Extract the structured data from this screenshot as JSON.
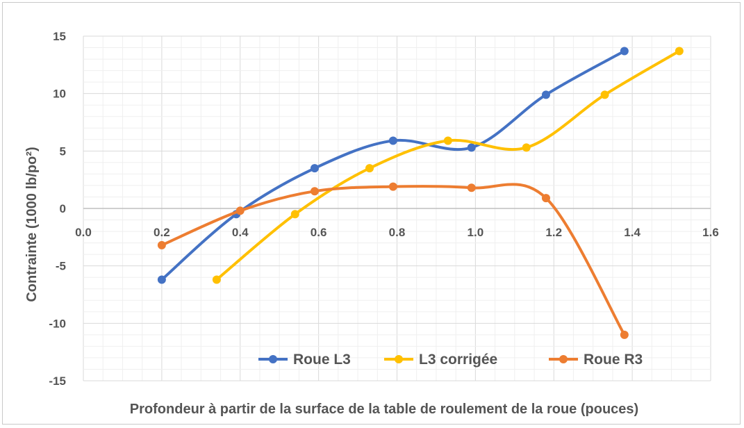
{
  "chart_data": {
    "type": "line",
    "title": "",
    "xlabel": "Profondeur à partir de la surface de la table de roulement de la roue (pouces)",
    "ylabel": "Contrainte (1000 lb/po²)",
    "xlim": [
      0.0,
      1.6
    ],
    "ylim": [
      -15,
      15
    ],
    "x_ticks": [
      "0.0",
      "0.2",
      "0.4",
      "0.6",
      "0.8",
      "1.0",
      "1.2",
      "1.4",
      "1.6"
    ],
    "y_ticks": [
      "15",
      "10",
      "5",
      "0",
      "-5",
      "-10",
      "-15"
    ],
    "grid": true,
    "legend_position": "bottom-right",
    "smooth": true,
    "series": [
      {
        "name": "Roue L3",
        "color": "#4472c4",
        "points": [
          [
            0.2,
            -6.2
          ],
          [
            0.39,
            -0.5
          ],
          [
            0.59,
            3.5
          ],
          [
            0.79,
            5.9
          ],
          [
            0.99,
            5.3
          ],
          [
            1.18,
            9.9
          ],
          [
            1.38,
            13.7
          ]
        ]
      },
      {
        "name": "L3 corrigée",
        "color": "#ffc000",
        "points": [
          [
            0.34,
            -6.2
          ],
          [
            0.54,
            -0.5
          ],
          [
            0.73,
            3.5
          ],
          [
            0.93,
            5.9
          ],
          [
            1.13,
            5.3
          ],
          [
            1.33,
            9.9
          ],
          [
            1.52,
            13.7
          ]
        ]
      },
      {
        "name": "Roue R3",
        "color": "#ed7d31",
        "points": [
          [
            0.2,
            -3.2
          ],
          [
            0.4,
            -0.2
          ],
          [
            0.59,
            1.5
          ],
          [
            0.79,
            1.9
          ],
          [
            0.99,
            1.8
          ],
          [
            1.18,
            0.9
          ],
          [
            1.38,
            -11.0
          ]
        ]
      }
    ]
  }
}
